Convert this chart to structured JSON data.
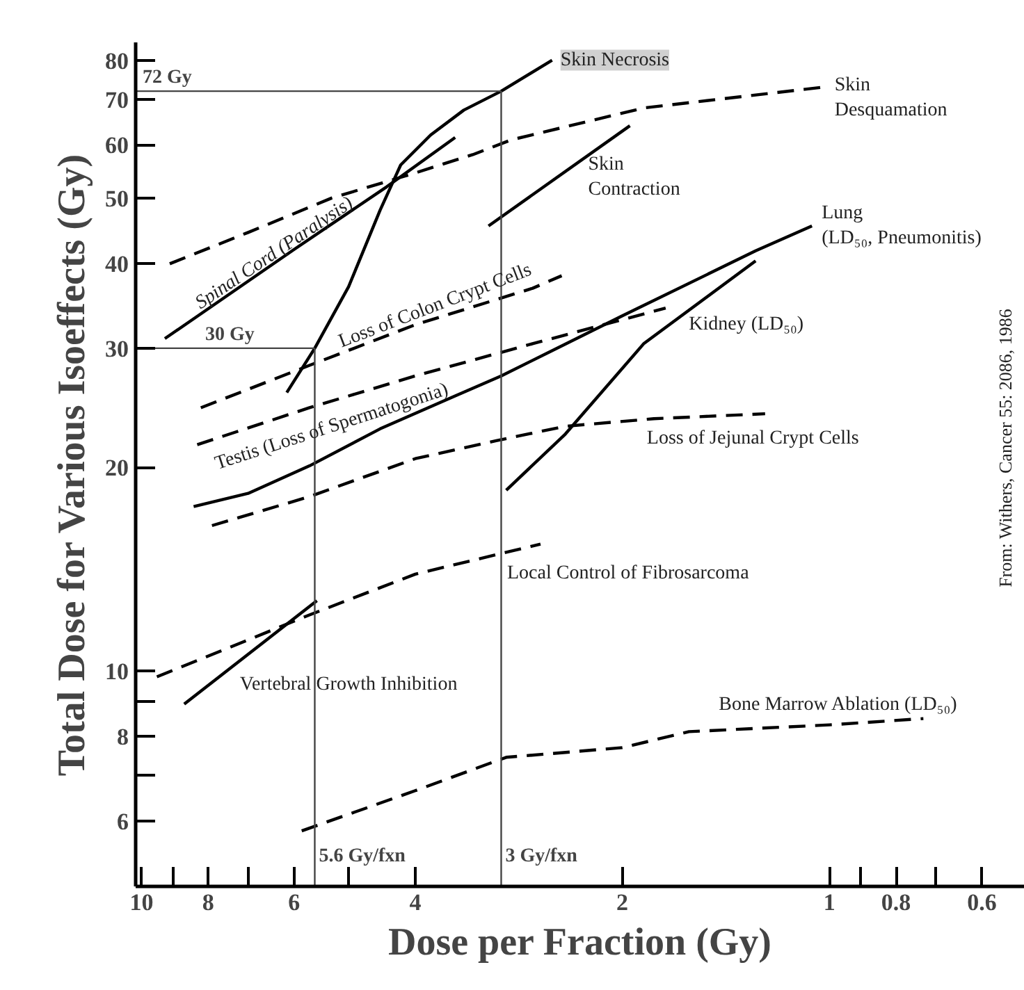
{
  "chart_data": {
    "type": "line",
    "xlabel": "Dose per Fraction (Gy)",
    "ylabel": "Total Dose for Various Isoeffects (Gy)",
    "log": "xy",
    "xlim": [
      10.2,
      0.52
    ],
    "ylim": [
      4.8,
      85
    ],
    "xticks": [
      10,
      {
        "value": 9,
        "label": null
      },
      8,
      {
        "value": 7,
        "label": null
      },
      6,
      {
        "value": 5,
        "label": null
      },
      4,
      2,
      1,
      {
        "value": 0.9,
        "label": null
      },
      0.8,
      {
        "value": 0.7,
        "label": null
      },
      0.6
    ],
    "yticks": [
      6,
      {
        "value": 7,
        "label": null
      },
      8,
      {
        "value": 9,
        "label": null
      },
      10,
      20,
      30,
      40,
      50,
      60,
      70,
      80
    ],
    "grid": false,
    "legend": false,
    "marker": "none",
    "series": [
      {
        "name": "Skin Necrosis",
        "color": "#000000",
        "line_style": "solid",
        "x": [
          6.15,
          5.6,
          5,
          4.5,
          4.2,
          3.8,
          3.4,
          3,
          2.53
        ],
        "values": [
          25.8,
          30,
          37,
          48,
          56,
          62,
          67.5,
          72,
          80
        ]
      },
      {
        "name": "Spinal Cord (Paralysis)",
        "color": "#000000",
        "line_style": "solid",
        "x": [
          9.25,
          6,
          4.4,
          3.5
        ],
        "values": [
          31,
          42,
          52,
          61.5
        ]
      },
      {
        "name": "Skin\nDesquamation",
        "color": "#000000",
        "line_style": "dashed",
        "x": [
          9.1,
          7,
          5.3,
          4,
          3.3,
          2.9,
          1.86,
          1.02
        ],
        "values": [
          40,
          44.5,
          50,
          54.5,
          58,
          61,
          68,
          73
        ]
      },
      {
        "name": "Skin\nContraction",
        "color": "#000000",
        "line_style": "solid",
        "x": [
          3.13,
          1.95
        ],
        "values": [
          45.5,
          64
        ]
      },
      {
        "name": "Lung\n(LD₅₀, Pneumonitis)",
        "color": "#000000",
        "line_style": "solid",
        "x": [
          8.4,
          7,
          5.7,
          4.5,
          3.5,
          3,
          2,
          1.28,
          1.06
        ],
        "values": [
          17.5,
          18.3,
          20.1,
          22.8,
          25.5,
          27.3,
          33.5,
          41.8,
          45.5
        ]
      },
      {
        "name": "Kidney (LD₅₀)",
        "color": "#000000",
        "line_style": "solid",
        "x": [
          2.95,
          2.42,
          1.86,
          1.28
        ],
        "values": [
          18.5,
          22.4,
          30.5,
          40.4
        ]
      },
      {
        "name": "Loss of Jejunal Crypt Cells",
        "color": "#000000",
        "line_style": "dashed",
        "x": [
          7.9,
          5.7,
          4,
          3.05,
          2.42,
          1.8,
          1.24
        ],
        "values": [
          16.4,
          18.1,
          20.6,
          21.9,
          23,
          23.6,
          24
        ]
      },
      {
        "name": "Testis (Loss of Spermatogonia)",
        "color": "#000000",
        "line_style": "dashed",
        "x": [
          8.3,
          5.7,
          4,
          2.69,
          1.73
        ],
        "values": [
          21.6,
          24.5,
          27.3,
          30.5,
          34.4
        ]
      },
      {
        "name": "Loss of Colon Crypt Cells",
        "color": "#000000",
        "line_style": "dashed",
        "x": [
          8.2,
          5.7,
          4,
          2.7,
          2.45
        ],
        "values": [
          24.5,
          28.3,
          32.5,
          36.8,
          38.4
        ]
      },
      {
        "name": "Local Control of Fibrosarcoma",
        "color": "#000000",
        "line_style": "dashed",
        "x": [
          9.5,
          7.5,
          5.7,
          4,
          2.63
        ],
        "values": [
          9.8,
          10.8,
          12.1,
          13.9,
          15.4
        ]
      },
      {
        "name": "Vertebral Growth Inhibition",
        "color": "#000000",
        "line_style": "solid",
        "x": [
          8.67,
          5.56
        ],
        "values": [
          8.93,
          12.7
        ]
      },
      {
        "name": "Bone Marrow Ablation (LD₅₀)",
        "color": "#000000",
        "line_style": "dashed",
        "x": [
          5.85,
          4,
          2.95,
          2,
          1.6,
          1,
          0.73
        ],
        "values": [
          5.8,
          6.65,
          7.45,
          7.7,
          8.13,
          8.32,
          8.5
        ]
      }
    ],
    "ref_lines": [
      {
        "axis": "x",
        "value": 5.6,
        "label": "5.6 Gy/fxn",
        "color": "#444444"
      },
      {
        "axis": "x",
        "value": 3,
        "label": "3 Gy/fxn",
        "color": "#444444"
      },
      {
        "axis": "y",
        "value": 30,
        "label": "30 Gy",
        "color": "#444444"
      },
      {
        "axis": "y",
        "value": 72,
        "label": "72 Gy",
        "color": "#444444"
      }
    ],
    "annotations": [
      "From:  Withers, Cancer 55: 2086, 1986"
    ]
  }
}
